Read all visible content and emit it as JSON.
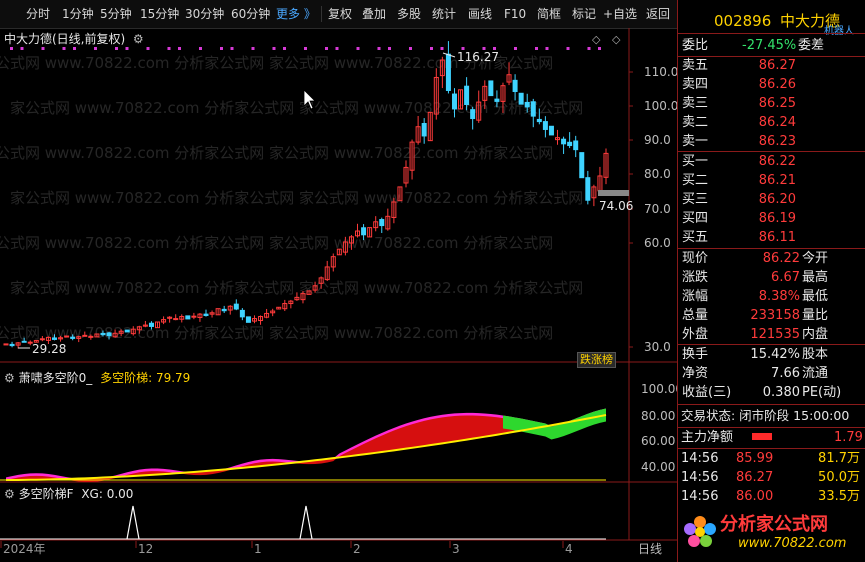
{
  "toolbar": {
    "items": [
      "分时",
      "1分钟",
      "5分钟",
      "15分钟",
      "30分钟",
      "60分钟",
      "更多 》",
      "复权",
      "叠加",
      "多股",
      "统计",
      "画线",
      "F10",
      "简框",
      "标记",
      "+自选",
      "返回"
    ]
  },
  "main_chart": {
    "title": "中大力德(日线,前复权)",
    "y_ticks": [
      "110.0",
      "100.0",
      "90.0",
      "80.0",
      "70.0",
      "60.0",
      "30.0"
    ],
    "annotations": {
      "high": "116.27",
      "low": "29.28",
      "last": "74.06"
    },
    "badge": "跌涨榜"
  },
  "indicator1": {
    "title": "萧啸多空阶0_",
    "label": "多空阶梯:",
    "value": "79.79",
    "y_ticks": [
      "100.00",
      "80.00",
      "60.00",
      "40.00"
    ]
  },
  "indicator2": {
    "title": "多空阶梯F",
    "label": "XG:",
    "value": "0.00"
  },
  "x_axis": {
    "labels": [
      "2024年",
      "12",
      "1",
      "2",
      "3",
      "4",
      "日线"
    ]
  },
  "chart_data": {
    "type": "candlestick",
    "x_axis_ticks": [
      "2024年",
      "12",
      "1",
      "2",
      "3",
      "4"
    ],
    "high_label": 116.27,
    "low_label": 29.28,
    "last_price_tag": 74.06,
    "indicator_value": 79.79,
    "xg_value": 0.0
  },
  "panel": {
    "code": "002896",
    "name": "中大力德",
    "corner": "机器人",
    "weibi_label": "委比",
    "weibi_value": "-27.45%",
    "weicha_label": "委差",
    "sell": [
      {
        "label": "卖五",
        "price": "86.27"
      },
      {
        "label": "卖四",
        "price": "86.26"
      },
      {
        "label": "卖三",
        "price": "86.25"
      },
      {
        "label": "卖二",
        "price": "86.24"
      },
      {
        "label": "卖一",
        "price": "86.23"
      }
    ],
    "buy": [
      {
        "label": "买一",
        "price": "86.22"
      },
      {
        "label": "买二",
        "price": "86.21"
      },
      {
        "label": "买三",
        "price": "86.20"
      },
      {
        "label": "买四",
        "price": "86.19"
      },
      {
        "label": "买五",
        "price": "86.11"
      }
    ],
    "quote": [
      {
        "l": "现价",
        "v": "86.22",
        "r": "今开"
      },
      {
        "l": "涨跌",
        "v": "6.67",
        "r": "最高"
      },
      {
        "l": "涨幅",
        "v": "8.38%",
        "r": "最低"
      },
      {
        "l": "总量",
        "v": "233158",
        "r": "量比"
      },
      {
        "l": "外盘",
        "v": "121535",
        "r": "内盘"
      }
    ],
    "stats": [
      {
        "l": "换手",
        "v": "15.42%",
        "r": "股本"
      },
      {
        "l": "净资",
        "v": "7.66",
        "r": "流通"
      },
      {
        "l": "收益(三)",
        "v": "0.380",
        "r": "PE(动)"
      }
    ],
    "trade_status": "交易状态: 闭市阶段 15:00:00",
    "main_flow_label": "主力净额",
    "main_flow_value": "1.79",
    "ticks": [
      {
        "t": "14:56",
        "p": "85.99",
        "v": "81.7万"
      },
      {
        "t": "14:56",
        "p": "86.27",
        "v": "50.0万"
      },
      {
        "t": "14:56",
        "p": "86.00",
        "v": "33.5万"
      }
    ],
    "logo_text": "分析家公式网",
    "logo_url": "www.70822.com"
  },
  "watermark": "家公式网 www.70822.com 分析家公式网"
}
